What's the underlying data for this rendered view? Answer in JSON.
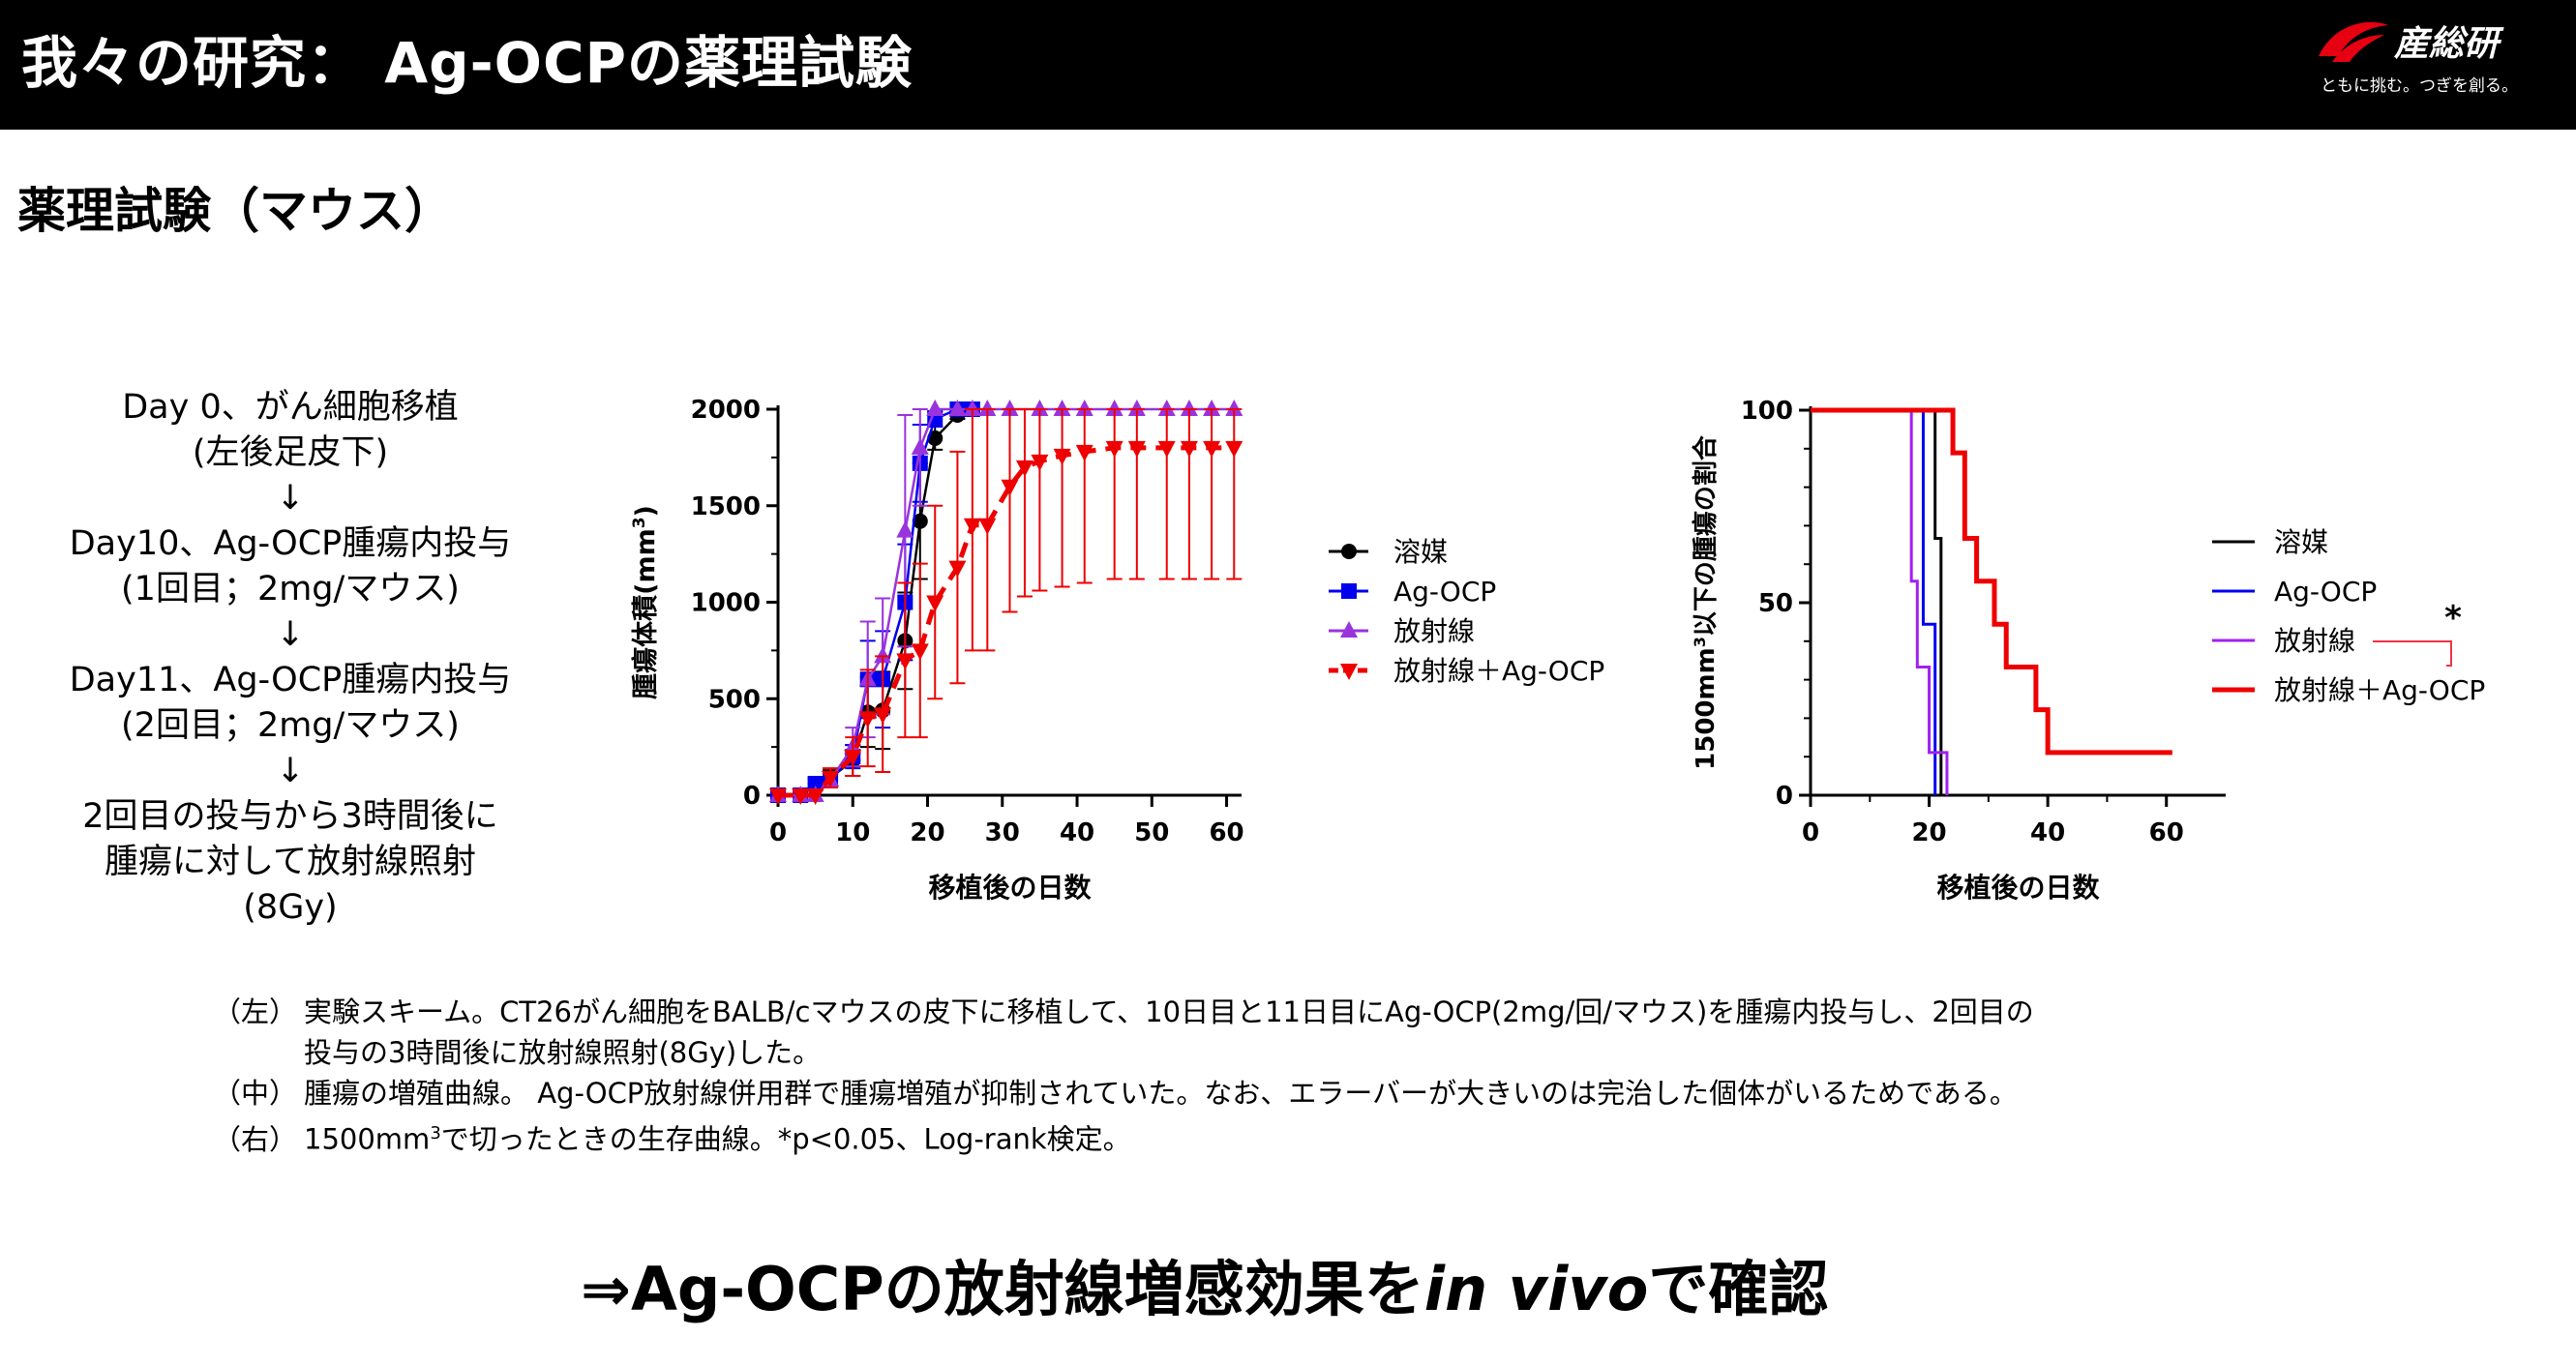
{
  "header": {
    "title": "我々の研究： Ag-OCPの薬理試験",
    "logo_name": "産総研",
    "logo_tagline": "ともに挑む。つぎを創る。"
  },
  "section_heading": "薬理試験（マウス）",
  "scheme_lines": [
    "Day 0、がん細胞移植",
    "(左後足皮下)",
    "↓",
    "Day10、Ag-OCP腫瘍内投与",
    "(1回目；2mg/マウス)",
    "↓",
    "Day11、Ag-OCP腫瘍内投与",
    "(2回目；2mg/マウス)",
    "↓",
    "2回目の投与から3時間後に",
    "腫瘍に対して放射線照射",
    "(8Gy)"
  ],
  "chart_data": [
    {
      "type": "line",
      "xlabel": "移植後の日数",
      "ylabel": "腫瘍体積(mm3)",
      "xlim": [
        0,
        62
      ],
      "ylim": [
        0,
        2000
      ],
      "xticks": [
        "0",
        "10",
        "20",
        "30",
        "40",
        "50",
        "60"
      ],
      "yticks": [
        "0",
        "500",
        "1000",
        "1500",
        "2000"
      ],
      "legend_position": "right",
      "series": [
        {
          "name": "溶媒",
          "color": "#000000",
          "marker": "circle",
          "dashed": false,
          "points": [
            [
              0,
              0
            ],
            [
              3,
              0
            ],
            [
              5,
              60
            ],
            [
              7,
              90
            ],
            [
              10,
              180
            ],
            [
              12,
              430
            ],
            [
              14,
              440
            ],
            [
              17,
              800
            ],
            [
              19,
              1420
            ],
            [
              21,
              1850
            ],
            [
              24,
              1970
            ],
            [
              26,
              2000
            ]
          ],
          "err": [
            0,
            0,
            30,
            40,
            80,
            180,
            200,
            250,
            300,
            60,
            20,
            0
          ]
        },
        {
          "name": "Ag-OCP",
          "color": "#0000ee",
          "marker": "square",
          "dashed": false,
          "points": [
            [
              0,
              0
            ],
            [
              3,
              0
            ],
            [
              5,
              60
            ],
            [
              7,
              80
            ],
            [
              10,
              200
            ],
            [
              12,
              600
            ],
            [
              14,
              600
            ],
            [
              17,
              1000
            ],
            [
              19,
              1720
            ],
            [
              21,
              1950
            ],
            [
              24,
              2000
            ],
            [
              26,
              2000
            ]
          ],
          "err": [
            0,
            0,
            20,
            30,
            60,
            200,
            250,
            300,
            200,
            40,
            0,
            0
          ]
        },
        {
          "name": "放射線",
          "color": "#9933dd",
          "marker": "triangle",
          "dashed": false,
          "points": [
            [
              0,
              0
            ],
            [
              3,
              0
            ],
            [
              5,
              0
            ],
            [
              7,
              80
            ],
            [
              10,
              250
            ],
            [
              12,
              600
            ],
            [
              14,
              720
            ],
            [
              17,
              1370
            ],
            [
              19,
              1800
            ],
            [
              21,
              2000
            ],
            [
              24,
              2000
            ],
            [
              26,
              2000
            ],
            [
              28,
              2000
            ],
            [
              31,
              2000
            ],
            [
              35,
              2000
            ],
            [
              38,
              2000
            ],
            [
              41,
              2000
            ],
            [
              45,
              2000
            ],
            [
              48,
              2000
            ],
            [
              52,
              2000
            ],
            [
              55,
              2000
            ],
            [
              58,
              2000
            ],
            [
              61,
              2000
            ]
          ],
          "err": [
            0,
            0,
            0,
            40,
            100,
            300,
            300,
            600,
            300,
            0,
            0,
            0,
            0,
            0,
            0,
            0,
            0,
            0,
            0,
            0,
            0,
            0,
            0
          ]
        },
        {
          "name": "放射線＋Ag-OCP",
          "color": "#ee0000",
          "marker": "triangle-down",
          "dashed": true,
          "points": [
            [
              0,
              0
            ],
            [
              3,
              0
            ],
            [
              5,
              0
            ],
            [
              7,
              90
            ],
            [
              10,
              200
            ],
            [
              12,
              400
            ],
            [
              14,
              420
            ],
            [
              17,
              700
            ],
            [
              19,
              750
            ],
            [
              21,
              1000
            ],
            [
              24,
              1180
            ],
            [
              26,
              1400
            ],
            [
              28,
              1400
            ],
            [
              31,
              1600
            ],
            [
              33,
              1700
            ],
            [
              35,
              1730
            ],
            [
              38,
              1760
            ],
            [
              41,
              1780
            ],
            [
              45,
              1800
            ],
            [
              48,
              1800
            ],
            [
              52,
              1800
            ],
            [
              55,
              1800
            ],
            [
              58,
              1800
            ],
            [
              61,
              1800
            ]
          ],
          "err": [
            0,
            0,
            0,
            50,
            100,
            250,
            300,
            400,
            450,
            500,
            600,
            650,
            650,
            650,
            670,
            670,
            680,
            680,
            680,
            680,
            680,
            680,
            680,
            680
          ]
        }
      ]
    },
    {
      "type": "line",
      "subtype": "survival",
      "xlabel": "移植後の日数",
      "ylabel": "1500mm3以下の腫瘍の割合",
      "xlim": [
        0,
        70
      ],
      "ylim": [
        0,
        100
      ],
      "xticks": [
        "0",
        "20",
        "40",
        "60"
      ],
      "yticks": [
        "0",
        "50",
        "100"
      ],
      "legend_position": "right",
      "annotation": "*",
      "series": [
        {
          "name": "溶媒",
          "color": "#000000",
          "points": [
            [
              0,
              100
            ],
            [
              21,
              100
            ],
            [
              21,
              66.7
            ],
            [
              22,
              66.7
            ],
            [
              22,
              0
            ]
          ]
        },
        {
          "name": "Ag-OCP",
          "color": "#0000ee",
          "points": [
            [
              0,
              100
            ],
            [
              19,
              100
            ],
            [
              19,
              44.4
            ],
            [
              21,
              44.4
            ],
            [
              21,
              0
            ]
          ]
        },
        {
          "name": "放射線",
          "color": "#a020f0",
          "points": [
            [
              0,
              100
            ],
            [
              17,
              100
            ],
            [
              17,
              55.6
            ],
            [
              18,
              55.6
            ],
            [
              18,
              33.3
            ],
            [
              20,
              33.3
            ],
            [
              20,
              11.1
            ],
            [
              23,
              11.1
            ],
            [
              23,
              0
            ]
          ]
        },
        {
          "name": "放射線＋Ag-OCP",
          "color": "#ee0000",
          "points": [
            [
              0,
              100
            ],
            [
              24,
              100
            ],
            [
              24,
              88.9
            ],
            [
              26,
              88.9
            ],
            [
              26,
              66.7
            ],
            [
              28,
              66.7
            ],
            [
              28,
              55.6
            ],
            [
              31,
              55.6
            ],
            [
              31,
              44.4
            ],
            [
              33,
              44.4
            ],
            [
              33,
              33.3
            ],
            [
              38,
              33.3
            ],
            [
              38,
              22.2
            ],
            [
              40,
              22.2
            ],
            [
              40,
              11.1
            ],
            [
              61,
              11.1
            ]
          ]
        }
      ]
    }
  ],
  "notes": {
    "left_prefix": "（左）",
    "left_line1": "実験スキーム。CT26がん細胞をBALB/cマウスの皮下に移植して、10日目と11日目にAg-OCP(2mg/回/マウス)を腫瘍内投与し、2回目の",
    "left_line2": "投与の3時間後に放射線照射(8Gy)した。",
    "middle_prefix": "（中）",
    "middle": "腫瘍の増殖曲線。 Ag-OCP放射線併用群で腫瘍増殖が抑制されていた。なお、エラーバーが大きいのは完治した個体がいるためである。",
    "right_prefix": "（右）",
    "right_before": "1500mm",
    "right_sup": "3",
    "right_after": "で切ったときの生存曲線。*p<0.05、Log-rank検定。"
  },
  "conclusion": {
    "before": "⇒Ag-OCPの放射線増感効果を",
    "italic": "in vivo",
    "after": "で確認"
  }
}
